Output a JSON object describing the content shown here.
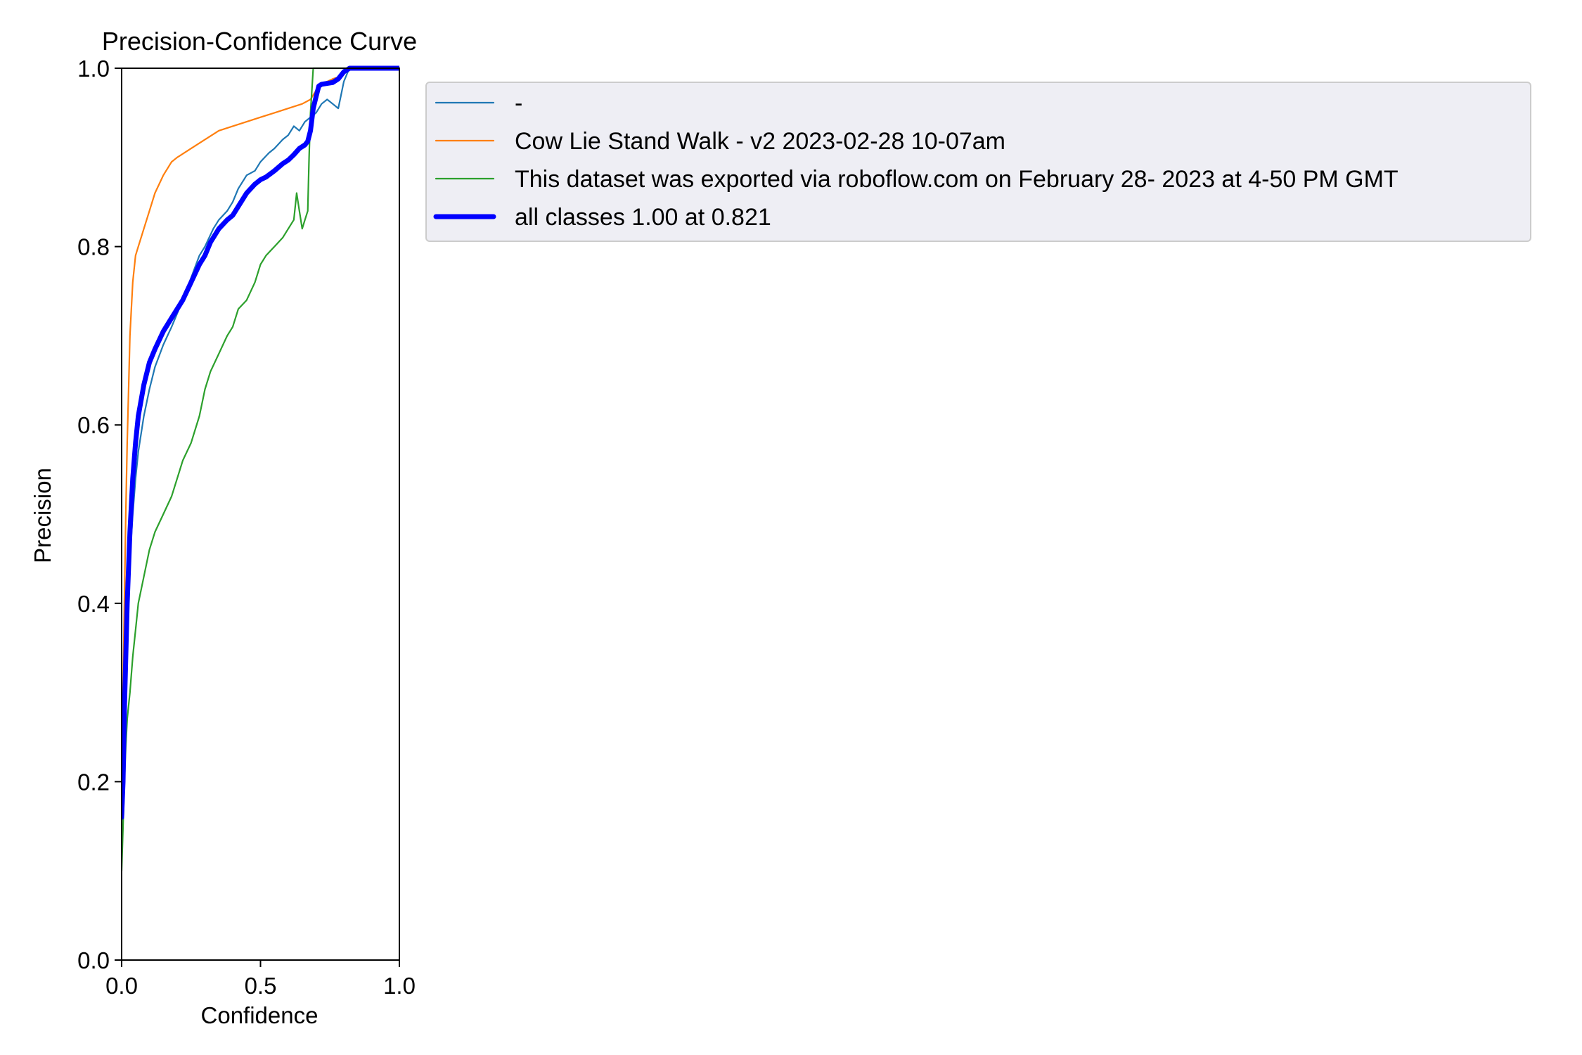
{
  "chart_data": {
    "type": "line",
    "title": "Precision-Confidence Curve",
    "xlabel": "Confidence",
    "ylabel": "Precision",
    "xlim": [
      0,
      1
    ],
    "ylim": [
      0,
      1
    ],
    "xticks": [
      "0.0",
      "0.5",
      "1.0"
    ],
    "yticks": [
      "0.0",
      "0.2",
      "0.4",
      "0.6",
      "0.8",
      "1.0"
    ],
    "grid": false,
    "legend_position": "outside upper-right",
    "series": [
      {
        "name": "-",
        "color": "#1f77b4",
        "style": "thin",
        "x": [
          0.0,
          0.005,
          0.01,
          0.02,
          0.03,
          0.04,
          0.05,
          0.06,
          0.08,
          0.1,
          0.12,
          0.15,
          0.18,
          0.2,
          0.22,
          0.25,
          0.28,
          0.3,
          0.33,
          0.35,
          0.38,
          0.4,
          0.42,
          0.45,
          0.48,
          0.5,
          0.53,
          0.55,
          0.58,
          0.6,
          0.62,
          0.64,
          0.66,
          0.68,
          0.7,
          0.72,
          0.74,
          0.76,
          0.78,
          0.79,
          0.8,
          0.82,
          0.85,
          0.9,
          1.0
        ],
        "y": [
          0.15,
          0.22,
          0.3,
          0.38,
          0.45,
          0.5,
          0.54,
          0.57,
          0.61,
          0.64,
          0.665,
          0.69,
          0.71,
          0.725,
          0.74,
          0.765,
          0.79,
          0.8,
          0.82,
          0.83,
          0.84,
          0.85,
          0.865,
          0.88,
          0.885,
          0.895,
          0.905,
          0.91,
          0.92,
          0.925,
          0.935,
          0.93,
          0.94,
          0.945,
          0.95,
          0.96,
          0.965,
          0.96,
          0.955,
          0.97,
          0.985,
          1.0,
          1.0,
          1.0,
          1.0
        ]
      },
      {
        "name": "Cow Lie Stand Walk - v2 2023-02-28 10-07am",
        "color": "#ff7f0e",
        "style": "thin",
        "x": [
          0.0,
          0.005,
          0.01,
          0.015,
          0.02,
          0.025,
          0.03,
          0.04,
          0.05,
          0.06,
          0.08,
          0.1,
          0.12,
          0.15,
          0.18,
          0.2,
          0.25,
          0.3,
          0.35,
          0.4,
          0.45,
          0.5,
          0.55,
          0.6,
          0.65,
          0.68,
          0.7,
          0.72,
          0.74,
          0.76,
          0.78,
          0.8,
          0.82,
          1.0
        ],
        "y": [
          0.2,
          0.3,
          0.4,
          0.5,
          0.58,
          0.64,
          0.7,
          0.76,
          0.79,
          0.8,
          0.82,
          0.84,
          0.86,
          0.88,
          0.895,
          0.9,
          0.91,
          0.92,
          0.93,
          0.935,
          0.94,
          0.945,
          0.95,
          0.955,
          0.96,
          0.965,
          0.975,
          0.98,
          0.985,
          0.988,
          0.99,
          0.995,
          1.0,
          1.0
        ]
      },
      {
        "name": "This dataset was exported via roboflow.com on February 28- 2023 at 4-50 PM GMT",
        "color": "#2ca02c",
        "style": "thin",
        "x": [
          0.0,
          0.005,
          0.01,
          0.015,
          0.02,
          0.03,
          0.04,
          0.05,
          0.06,
          0.08,
          0.1,
          0.12,
          0.15,
          0.18,
          0.2,
          0.22,
          0.25,
          0.28,
          0.3,
          0.32,
          0.35,
          0.38,
          0.4,
          0.42,
          0.45,
          0.48,
          0.5,
          0.52,
          0.55,
          0.58,
          0.6,
          0.62,
          0.63,
          0.64,
          0.65,
          0.66,
          0.67,
          0.675,
          0.68,
          0.69,
          0.7,
          0.72,
          0.75,
          0.8,
          1.0
        ],
        "y": [
          0.1,
          0.15,
          0.2,
          0.24,
          0.27,
          0.3,
          0.34,
          0.37,
          0.4,
          0.43,
          0.46,
          0.48,
          0.5,
          0.52,
          0.54,
          0.56,
          0.58,
          0.61,
          0.64,
          0.66,
          0.68,
          0.7,
          0.71,
          0.73,
          0.74,
          0.76,
          0.78,
          0.79,
          0.8,
          0.81,
          0.82,
          0.83,
          0.86,
          0.84,
          0.82,
          0.83,
          0.84,
          0.9,
          0.95,
          1.0,
          1.0,
          1.0,
          1.0,
          1.0,
          1.0
        ]
      },
      {
        "name": "all classes 1.00 at 0.821",
        "color": "#0000ff",
        "style": "thick",
        "x": [
          0.0,
          0.005,
          0.01,
          0.015,
          0.02,
          0.03,
          0.04,
          0.05,
          0.06,
          0.08,
          0.1,
          0.12,
          0.15,
          0.18,
          0.2,
          0.22,
          0.25,
          0.28,
          0.3,
          0.32,
          0.35,
          0.38,
          0.4,
          0.42,
          0.45,
          0.48,
          0.5,
          0.52,
          0.55,
          0.58,
          0.6,
          0.62,
          0.64,
          0.66,
          0.67,
          0.68,
          0.69,
          0.7,
          0.71,
          0.72,
          0.74,
          0.76,
          0.78,
          0.8,
          0.821,
          0.85,
          0.9,
          1.0
        ],
        "y": [
          0.16,
          0.2,
          0.28,
          0.34,
          0.4,
          0.48,
          0.54,
          0.58,
          0.61,
          0.645,
          0.67,
          0.685,
          0.705,
          0.72,
          0.73,
          0.74,
          0.76,
          0.78,
          0.79,
          0.805,
          0.82,
          0.83,
          0.835,
          0.845,
          0.86,
          0.87,
          0.875,
          0.878,
          0.885,
          0.893,
          0.897,
          0.903,
          0.91,
          0.914,
          0.918,
          0.93,
          0.955,
          0.968,
          0.98,
          0.982,
          0.983,
          0.984,
          0.988,
          0.996,
          1.0,
          1.0,
          1.0,
          1.0
        ]
      }
    ]
  }
}
